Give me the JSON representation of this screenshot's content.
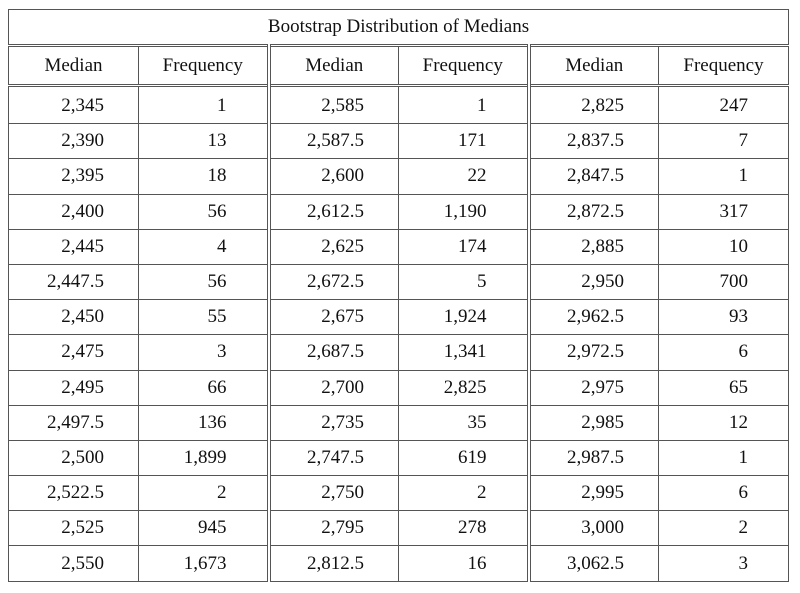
{
  "table": {
    "title": "Bootstrap Distribution of Medians",
    "headers": [
      "Median",
      "Frequency",
      "Median",
      "Frequency",
      "Median",
      "Frequency"
    ],
    "rows": [
      [
        "2,345",
        "1",
        "2,585",
        "1",
        "2,825",
        "247"
      ],
      [
        "2,390",
        "13",
        "2,587.5",
        "171",
        "2,837.5",
        "7"
      ],
      [
        "2,395",
        "18",
        "2,600",
        "22",
        "2,847.5",
        "1"
      ],
      [
        "2,400",
        "56",
        "2,612.5",
        "1,190",
        "2,872.5",
        "317"
      ],
      [
        "2,445",
        "4",
        "2,625",
        "174",
        "2,885",
        "10"
      ],
      [
        "2,447.5",
        "56",
        "2,672.5",
        "5",
        "2,950",
        "700"
      ],
      [
        "2,450",
        "55",
        "2,675",
        "1,924",
        "2,962.5",
        "93"
      ],
      [
        "2,475",
        "3",
        "2,687.5",
        "1,341",
        "2,972.5",
        "6"
      ],
      [
        "2,495",
        "66",
        "2,700",
        "2,825",
        "2,975",
        "65"
      ],
      [
        "2,497.5",
        "136",
        "2,735",
        "35",
        "2,985",
        "12"
      ],
      [
        "2,500",
        "1,899",
        "2,747.5",
        "619",
        "2,987.5",
        "1"
      ],
      [
        "2,522.5",
        "2",
        "2,750",
        "2",
        "2,995",
        "6"
      ],
      [
        "2,525",
        "945",
        "2,795",
        "278",
        "3,000",
        "2"
      ],
      [
        "2,550",
        "1,673",
        "2,812.5",
        "16",
        "3,062.5",
        "3"
      ]
    ]
  }
}
